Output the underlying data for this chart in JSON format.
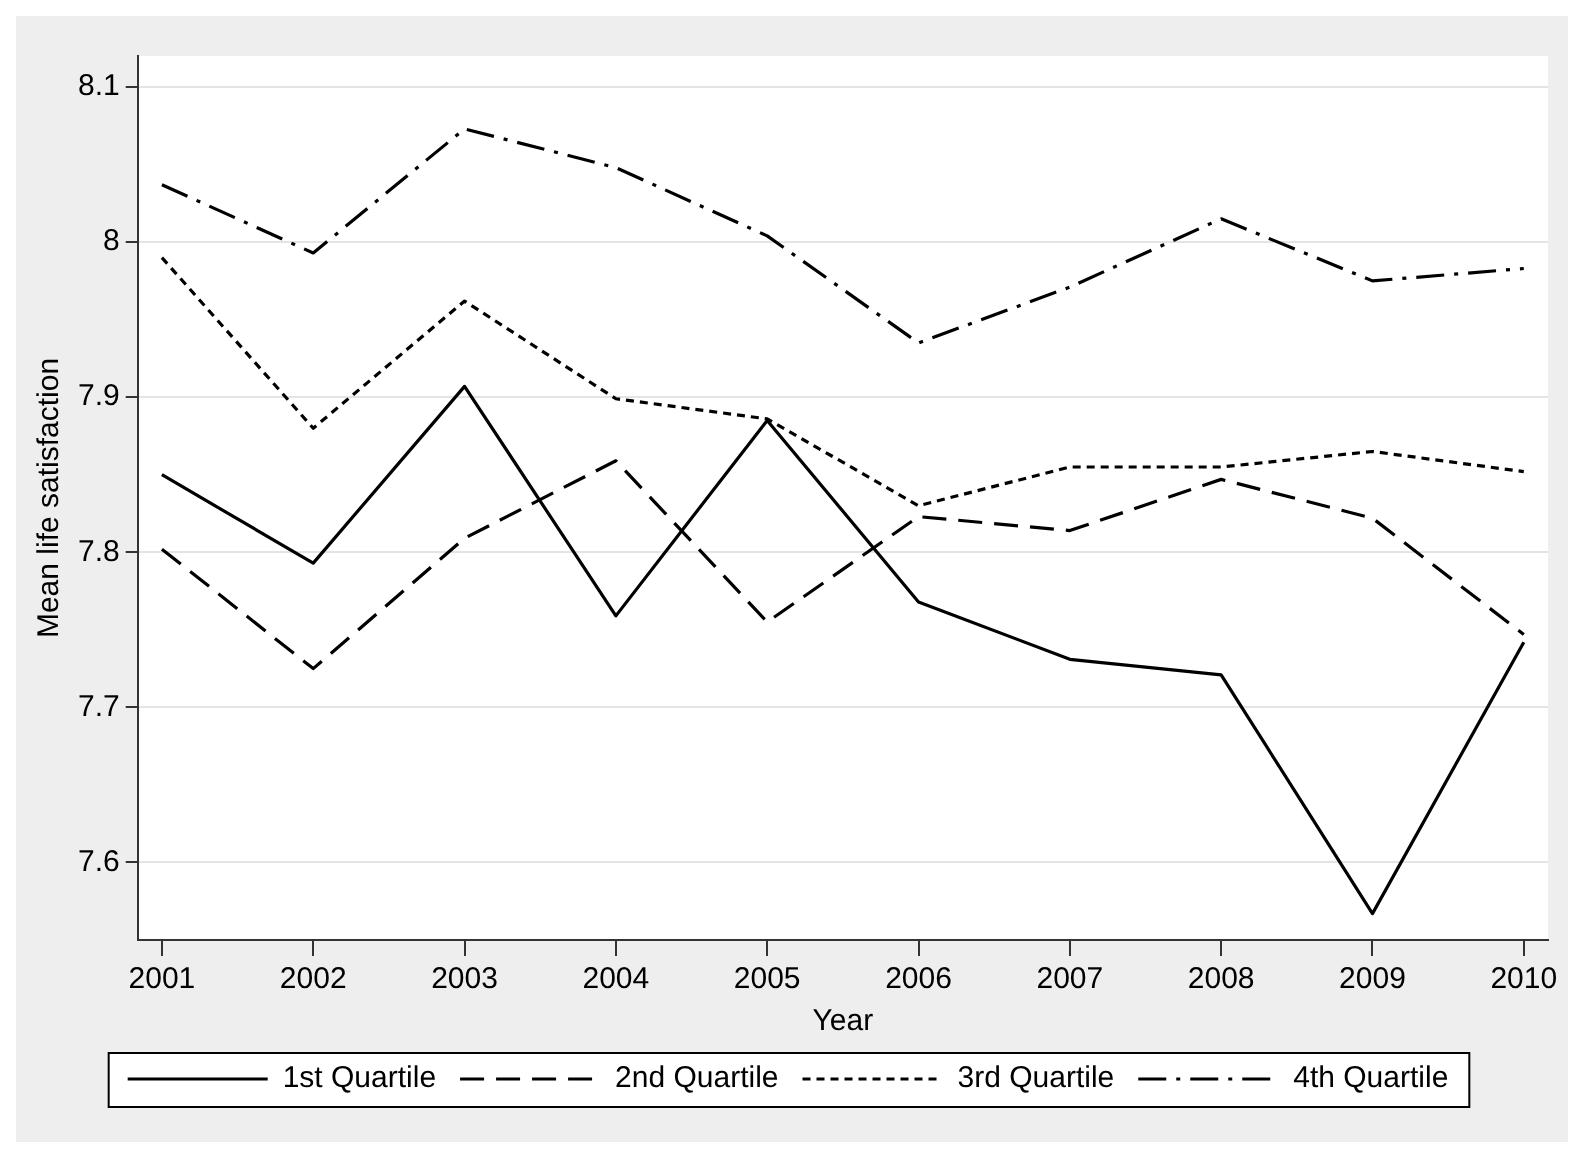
{
  "chart_data": {
    "type": "line",
    "xlabel": "Year",
    "ylabel": "Mean life satisfaction",
    "x": [
      2001,
      2002,
      2003,
      2004,
      2005,
      2006,
      2007,
      2008,
      2009,
      2010
    ],
    "xlim": [
      2000.84,
      2010.16
    ],
    "xticks": [
      2001,
      2002,
      2003,
      2004,
      2005,
      2006,
      2007,
      2008,
      2009,
      2010
    ],
    "ylim": [
      7.55,
      8.12
    ],
    "yticks": [
      7.6,
      7.7,
      7.8,
      7.9,
      8,
      8.1
    ],
    "grid": "y",
    "legend": "bottom",
    "marker": "none",
    "series": [
      {
        "name": "1st Quartile",
        "color": "#000000",
        "line_style": "solid",
        "values": [
          7.85,
          7.793,
          7.907,
          7.759,
          7.885,
          7.768,
          7.731,
          7.721,
          7.567,
          7.742
        ]
      },
      {
        "name": "2nd Quartile",
        "color": "#000000",
        "line_style": "dashed",
        "values": [
          7.802,
          7.725,
          7.809,
          7.859,
          7.755,
          7.823,
          7.814,
          7.847,
          7.822,
          7.747
        ]
      },
      {
        "name": "3rd Quartile",
        "color": "#000000",
        "line_style": "dotted",
        "values": [
          7.99,
          7.88,
          7.962,
          7.899,
          7.886,
          7.83,
          7.855,
          7.855,
          7.865,
          7.852
        ]
      },
      {
        "name": "4th Quartile",
        "color": "#000000",
        "line_style": "dashdot",
        "values": [
          8.037,
          7.993,
          8.073,
          8.048,
          8.004,
          7.935,
          7.971,
          8.015,
          7.975,
          7.983
        ]
      }
    ]
  }
}
